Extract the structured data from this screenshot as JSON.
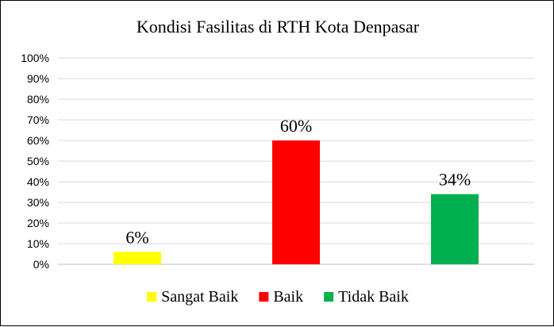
{
  "chart_data": {
    "type": "bar",
    "title": "Kondisi Fasilitas  di RTH Kota Denpasar",
    "categories": [
      "Sangat Baik",
      "Baik",
      "Tidak Baik"
    ],
    "values": [
      6,
      60,
      34
    ],
    "data_labels": [
      "6%",
      "60%",
      "34%"
    ],
    "colors": [
      "#FFFF00",
      "#FF0000",
      "#00B050"
    ],
    "ylim": [
      0,
      100
    ],
    "y_ticks": [
      "0%",
      "10%",
      "20%",
      "30%",
      "40%",
      "50%",
      "60%",
      "70%",
      "80%",
      "90%",
      "100%"
    ],
    "grid": true,
    "legend": {
      "placement": "bottom",
      "entries": [
        "Sangat Baik",
        "Baik",
        "Tidak Baik"
      ]
    },
    "xlabel": "",
    "ylabel": ""
  }
}
